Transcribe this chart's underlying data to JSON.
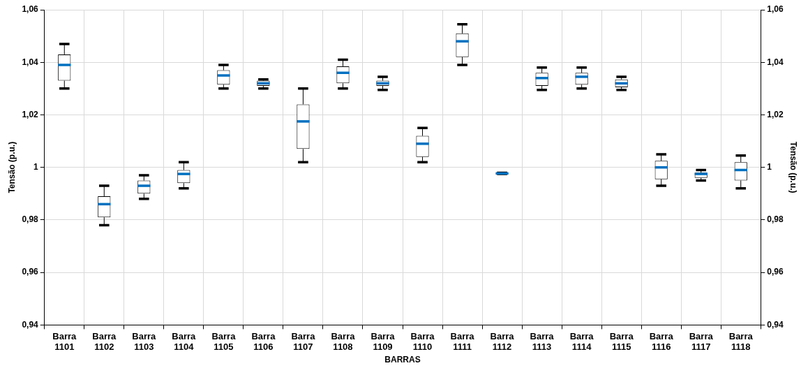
{
  "chart_data": {
    "type": "box",
    "categories": [
      "Barra 1101",
      "Barra 1102",
      "Barra 1103",
      "Barra 1104",
      "Barra 1105",
      "Barra 1106",
      "Barra 1107",
      "Barra 1108",
      "Barra 1109",
      "Barra 1110",
      "Barra 1111",
      "Barra 1112",
      "Barra 1113",
      "Barra 1114",
      "Barra 1115",
      "Barra 1116",
      "Barra 1117",
      "Barra 1118"
    ],
    "xlabel": "BARRAS",
    "ylabel": "Tensão (p.u.)",
    "y2label": "Tensão (p.u.)",
    "series": [
      {
        "boxes": [
          {
            "low": 1.03,
            "q1": 1.033,
            "median": 1.039,
            "q3": 1.043,
            "high": 1.047
          },
          {
            "low": 0.978,
            "q1": 0.981,
            "median": 0.986,
            "q3": 0.989,
            "high": 0.993
          },
          {
            "low": 0.988,
            "q1": 0.99,
            "median": 0.993,
            "q3": 0.995,
            "high": 0.997
          },
          {
            "low": 0.992,
            "q1": 0.994,
            "median": 0.9975,
            "q3": 0.999,
            "high": 1.002
          },
          {
            "low": 1.03,
            "q1": 1.0315,
            "median": 1.035,
            "q3": 1.037,
            "high": 1.039
          },
          {
            "low": 1.03,
            "q1": 1.031,
            "median": 1.032,
            "q3": 1.033,
            "high": 1.0335
          },
          {
            "low": 1.002,
            "q1": 1.007,
            "median": 1.0175,
            "q3": 1.024,
            "high": 1.03
          },
          {
            "low": 1.03,
            "q1": 1.032,
            "median": 1.036,
            "q3": 1.0385,
            "high": 1.041
          },
          {
            "low": 1.0295,
            "q1": 1.031,
            "median": 1.032,
            "q3": 1.033,
            "high": 1.0345
          },
          {
            "low": 1.002,
            "q1": 1.004,
            "median": 1.009,
            "q3": 1.012,
            "high": 1.015
          },
          {
            "low": 1.039,
            "q1": 1.042,
            "median": 1.048,
            "q3": 1.051,
            "high": 1.0545
          },
          {
            "low": 0.9975,
            "q1": 0.9976,
            "median": 0.9977,
            "q3": 0.9978,
            "high": 0.9979
          },
          {
            "low": 1.0295,
            "q1": 1.031,
            "median": 1.034,
            "q3": 1.036,
            "high": 1.038
          },
          {
            "low": 1.03,
            "q1": 1.0315,
            "median": 1.0345,
            "q3": 1.036,
            "high": 1.038
          },
          {
            "low": 1.0295,
            "q1": 1.0305,
            "median": 1.032,
            "q3": 1.0335,
            "high": 1.0345
          },
          {
            "low": 0.993,
            "q1": 0.9955,
            "median": 1.0,
            "q3": 1.0025,
            "high": 1.005
          },
          {
            "low": 0.995,
            "q1": 0.996,
            "median": 0.9975,
            "q3": 0.998,
            "high": 0.999
          },
          {
            "low": 0.992,
            "q1": 0.995,
            "median": 0.999,
            "q3": 1.002,
            "high": 1.0045
          }
        ]
      }
    ],
    "ylim": [
      0.94,
      1.06
    ],
    "yticks": [
      {
        "value": 0.94,
        "label": "0,94"
      },
      {
        "value": 0.96,
        "label": "0,96"
      },
      {
        "value": 0.98,
        "label": "0,98"
      },
      1,
      {
        "value": 1.02,
        "label": "1,02"
      },
      {
        "value": 1.04,
        "label": "1,04"
      },
      {
        "value": 1.06,
        "label": "1,06"
      }
    ],
    "y2lim": [
      0.94,
      1.06
    ],
    "y2ticks": [
      {
        "value": 0.94,
        "label": "0,94"
      },
      {
        "value": 0.96,
        "label": "0,96"
      },
      {
        "value": 0.98,
        "label": "0,98"
      },
      1,
      {
        "value": 1.02,
        "label": "1,02"
      },
      {
        "value": 1.04,
        "label": "1,04"
      },
      {
        "value": 1.06,
        "label": "1,06"
      }
    ],
    "grid": true
  }
}
